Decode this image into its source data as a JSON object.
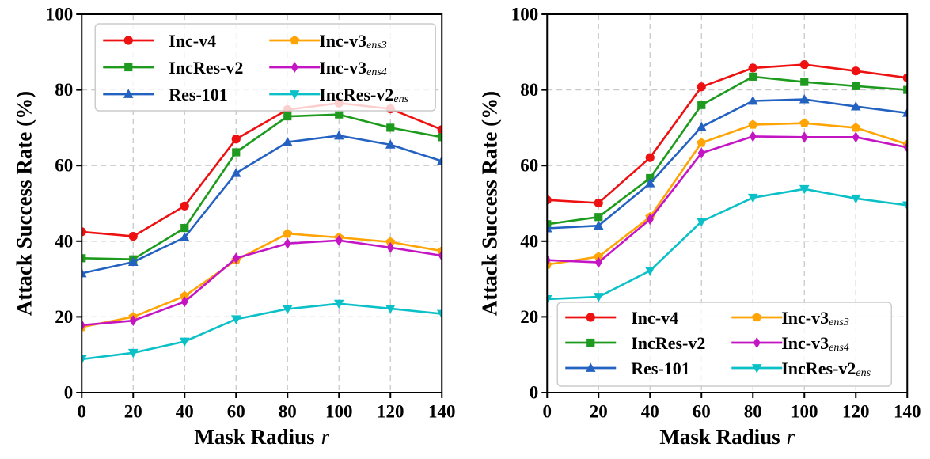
{
  "figure": {
    "background": "#ffffff"
  },
  "chart_data": [
    {
      "name": "left-chart",
      "type": "line",
      "title": "",
      "xlabel": "Mask Radius",
      "xlabel_var": "r",
      "ylabel": "Attack Success Rate (%)",
      "x": [
        0,
        20,
        40,
        60,
        80,
        100,
        120,
        140
      ],
      "xticks": [
        0,
        20,
        40,
        60,
        80,
        100,
        120,
        140
      ],
      "yticks": [
        0,
        20,
        40,
        60,
        80,
        100
      ],
      "xlim": [
        0,
        140
      ],
      "ylim": [
        0,
        100
      ],
      "grid": "dashed",
      "grid_color": "#c9c9c9",
      "legend_position": "upper-left",
      "series": [
        {
          "name": "Inc-v4",
          "sub": "",
          "color": "#ee1111",
          "marker": "circle",
          "values": [
            42.5,
            41.3,
            49.3,
            67.0,
            74.8,
            76.5,
            75.0,
            69.5
          ]
        },
        {
          "name": "IncRes-v2",
          "sub": "",
          "color": "#1e9b1e",
          "marker": "square",
          "values": [
            35.5,
            35.2,
            43.5,
            63.5,
            73.0,
            73.5,
            70.0,
            67.5
          ]
        },
        {
          "name": "Res-101",
          "sub": "",
          "color": "#2462c2",
          "marker": "triangle-up",
          "values": [
            31.5,
            34.5,
            41.0,
            58.0,
            66.2,
            67.9,
            65.5,
            61.2
          ]
        },
        {
          "name": "Inc-v3",
          "sub": "ens3",
          "color": "#ffa405",
          "marker": "pentagon",
          "values": [
            17.3,
            20.0,
            25.5,
            35.0,
            42.0,
            41.0,
            39.8,
            37.4
          ]
        },
        {
          "name": "Inc-v3",
          "sub": "ens4",
          "color": "#c415c4",
          "marker": "diamond",
          "values": [
            17.8,
            19.0,
            24.0,
            35.5,
            39.4,
            40.2,
            38.3,
            36.2
          ]
        },
        {
          "name": "IncRes-v2",
          "sub": "ens",
          "color": "#0cc0c8",
          "marker": "triangle-down",
          "values": [
            8.8,
            10.5,
            13.5,
            19.4,
            22.1,
            23.5,
            22.2,
            20.8
          ]
        }
      ]
    },
    {
      "name": "right-chart",
      "type": "line",
      "title": "",
      "xlabel": "Mask Radius",
      "xlabel_var": "r",
      "ylabel": "Attack Success Rate (%)",
      "x": [
        0,
        20,
        40,
        60,
        80,
        100,
        120,
        140
      ],
      "xticks": [
        0,
        20,
        40,
        60,
        80,
        100,
        120,
        140
      ],
      "yticks": [
        0,
        20,
        40,
        60,
        80,
        100
      ],
      "xlim": [
        0,
        140
      ],
      "ylim": [
        0,
        100
      ],
      "grid": "dashed",
      "grid_color": "#c9c9c9",
      "legend_position": "lower-center",
      "series": [
        {
          "name": "Inc-v4",
          "sub": "",
          "color": "#ee1111",
          "marker": "circle",
          "values": [
            50.9,
            50.1,
            62.1,
            80.8,
            85.8,
            86.7,
            85.0,
            83.2
          ]
        },
        {
          "name": "IncRes-v2",
          "sub": "",
          "color": "#1e9b1e",
          "marker": "square",
          "values": [
            44.5,
            46.4,
            56.7,
            76.0,
            83.5,
            82.1,
            81.0,
            80.0
          ]
        },
        {
          "name": "Res-101",
          "sub": "",
          "color": "#2462c2",
          "marker": "triangle-up",
          "values": [
            43.4,
            44.1,
            55.3,
            70.2,
            77.1,
            77.5,
            75.6,
            73.9
          ]
        },
        {
          "name": "Inc-v3",
          "sub": "ens3",
          "color": "#ffa405",
          "marker": "pentagon",
          "values": [
            33.8,
            35.9,
            46.4,
            66.0,
            70.8,
            71.2,
            70.0,
            65.6
          ]
        },
        {
          "name": "Inc-v3",
          "sub": "ens4",
          "color": "#c415c4",
          "marker": "diamond",
          "values": [
            35.0,
            34.4,
            45.8,
            63.3,
            67.7,
            67.5,
            67.5,
            64.8
          ]
        },
        {
          "name": "IncRes-v2",
          "sub": "ens",
          "color": "#0cc0c8",
          "marker": "triangle-down",
          "values": [
            24.7,
            25.3,
            32.2,
            45.2,
            51.5,
            53.8,
            51.3,
            49.5
          ]
        }
      ]
    }
  ]
}
